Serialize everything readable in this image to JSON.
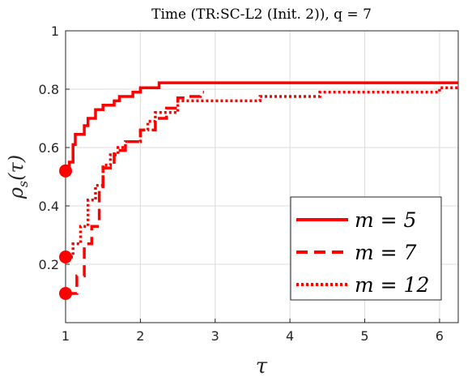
{
  "chart_data": {
    "type": "line",
    "title": "Time (TR:SC-L2 (Init. 2)), q = 7",
    "xlabel": "τ",
    "ylabel": "ρs(τ)",
    "xlim": [
      1,
      6.25
    ],
    "ylim": [
      0,
      1.0
    ],
    "xticks": [
      1,
      2,
      3,
      4,
      5,
      6
    ],
    "yticks": [
      0.2,
      0.4,
      0.6,
      0.8,
      1
    ],
    "grid": true,
    "legend_position": "bottom-right",
    "series": [
      {
        "name": "m = 5",
        "style": "solid",
        "color": "#ff0000",
        "start_marker": true,
        "points": [
          [
            1.0,
            0.52
          ],
          [
            1.05,
            0.55
          ],
          [
            1.1,
            0.61
          ],
          [
            1.13,
            0.645
          ],
          [
            1.25,
            0.675
          ],
          [
            1.3,
            0.7
          ],
          [
            1.4,
            0.73
          ],
          [
            1.5,
            0.745
          ],
          [
            1.65,
            0.76
          ],
          [
            1.72,
            0.775
          ],
          [
            1.9,
            0.79
          ],
          [
            2.0,
            0.805
          ],
          [
            2.25,
            0.822
          ],
          [
            6.25,
            0.822
          ]
        ]
      },
      {
        "name": "m = 7",
        "style": "dashed",
        "color": "#ff0000",
        "start_marker": true,
        "points": [
          [
            1.0,
            0.1
          ],
          [
            1.15,
            0.16
          ],
          [
            1.25,
            0.27
          ],
          [
            1.35,
            0.33
          ],
          [
            1.45,
            0.46
          ],
          [
            1.5,
            0.53
          ],
          [
            1.65,
            0.59
          ],
          [
            1.8,
            0.62
          ],
          [
            2.0,
            0.66
          ],
          [
            2.2,
            0.7
          ],
          [
            2.35,
            0.735
          ],
          [
            2.5,
            0.77
          ],
          [
            2.6,
            0.775
          ],
          [
            2.8,
            0.79
          ],
          [
            2.85,
            0.79
          ]
        ]
      },
      {
        "name": "m = 12",
        "style": "dotted",
        "color": "#ff0000",
        "start_marker": true,
        "points": [
          [
            1.0,
            0.225
          ],
          [
            1.1,
            0.27
          ],
          [
            1.2,
            0.33
          ],
          [
            1.3,
            0.42
          ],
          [
            1.4,
            0.47
          ],
          [
            1.5,
            0.54
          ],
          [
            1.6,
            0.575
          ],
          [
            1.7,
            0.6
          ],
          [
            1.8,
            0.62
          ],
          [
            2.0,
            0.66
          ],
          [
            2.1,
            0.69
          ],
          [
            2.2,
            0.72
          ],
          [
            2.5,
            0.76
          ],
          [
            3.0,
            0.76
          ],
          [
            3.5,
            0.76
          ],
          [
            3.6,
            0.775
          ],
          [
            4.0,
            0.775
          ],
          [
            4.4,
            0.79
          ],
          [
            5.5,
            0.79
          ],
          [
            6.0,
            0.805
          ],
          [
            6.25,
            0.805
          ]
        ]
      }
    ]
  }
}
